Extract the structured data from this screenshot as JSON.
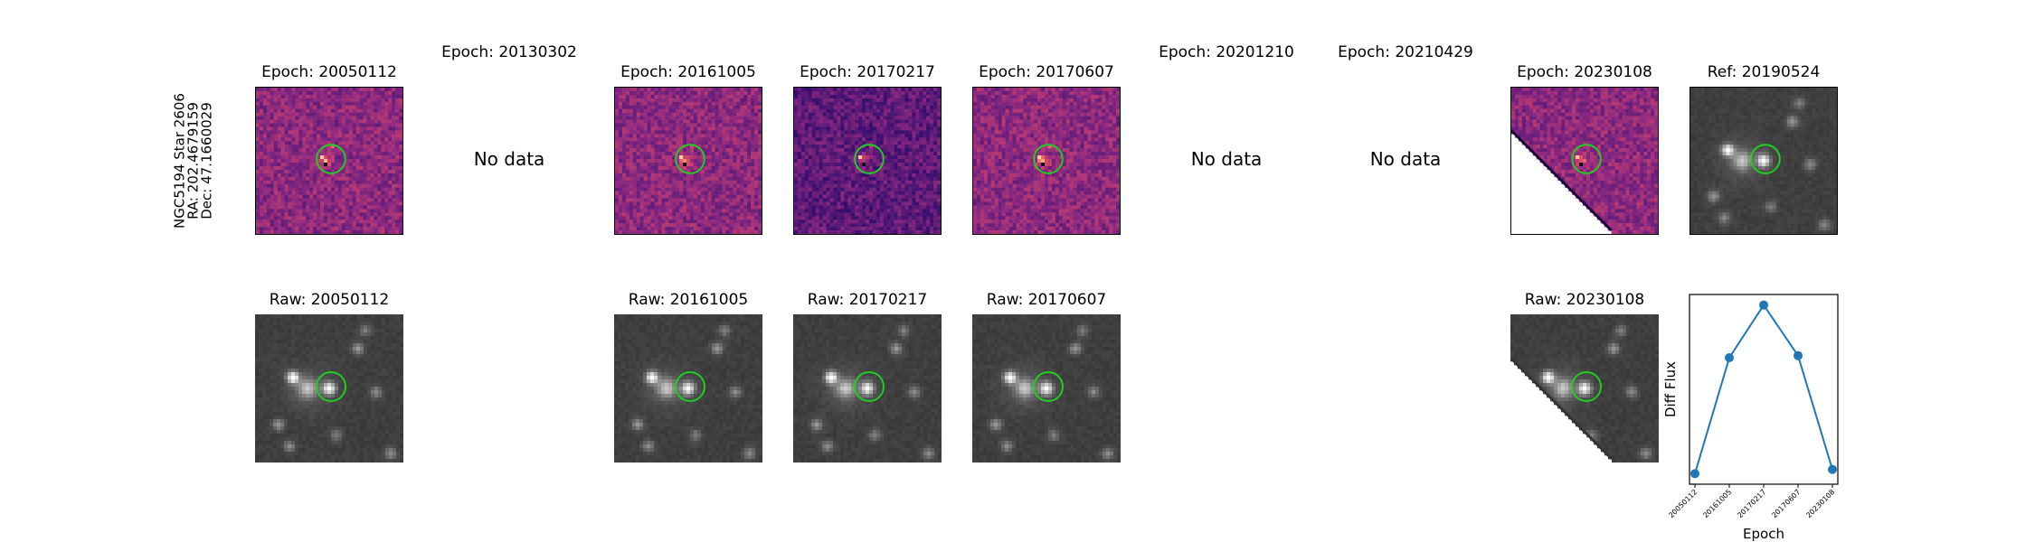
{
  "target": {
    "galaxy": "NGC5194 Star 2606",
    "ra": "RA: 202.4679159",
    "dec": "Dec: 47.1660029"
  },
  "top_row": [
    {
      "title": "Epoch: 20050112",
      "status": "image",
      "colormap": "magma"
    },
    {
      "title": "Epoch: 20130302",
      "status": "No data"
    },
    {
      "title": "Epoch: 20161005",
      "status": "image",
      "colormap": "magma"
    },
    {
      "title": "Epoch: 20170217",
      "status": "image",
      "colormap": "magma"
    },
    {
      "title": "Epoch: 20170607",
      "status": "image",
      "colormap": "magma"
    },
    {
      "title": "Epoch: 20201210",
      "status": "No data"
    },
    {
      "title": "Epoch: 20210429",
      "status": "No data"
    },
    {
      "title": "Epoch: 20230108",
      "status": "image",
      "colormap": "magma",
      "edge_mask": true
    },
    {
      "title": "Ref: 20190524",
      "status": "image",
      "colormap": "gray"
    }
  ],
  "bottom_row": [
    {
      "title": "Raw: 20050112",
      "colormap": "gray"
    },
    {
      "title": "Raw: 20161005",
      "colormap": "gray"
    },
    {
      "title": "Raw: 20170217",
      "colormap": "gray"
    },
    {
      "title": "Raw: 20170607",
      "colormap": "gray"
    },
    {
      "title": "Raw: 20230108",
      "colormap": "gray",
      "edge_mask": true
    }
  ],
  "aperture_color": "#22cc22",
  "chart_data": {
    "type": "line",
    "x": [
      "20050112",
      "20161005",
      "20170217",
      "20170607",
      "20230108"
    ],
    "y": [
      0.05,
      0.6,
      0.85,
      0.61,
      0.07
    ],
    "xlabel": "Epoch",
    "ylabel": "Diff Flux",
    "ylim": [
      0,
      0.9
    ],
    "color": "#1f77b4",
    "grid": false
  }
}
